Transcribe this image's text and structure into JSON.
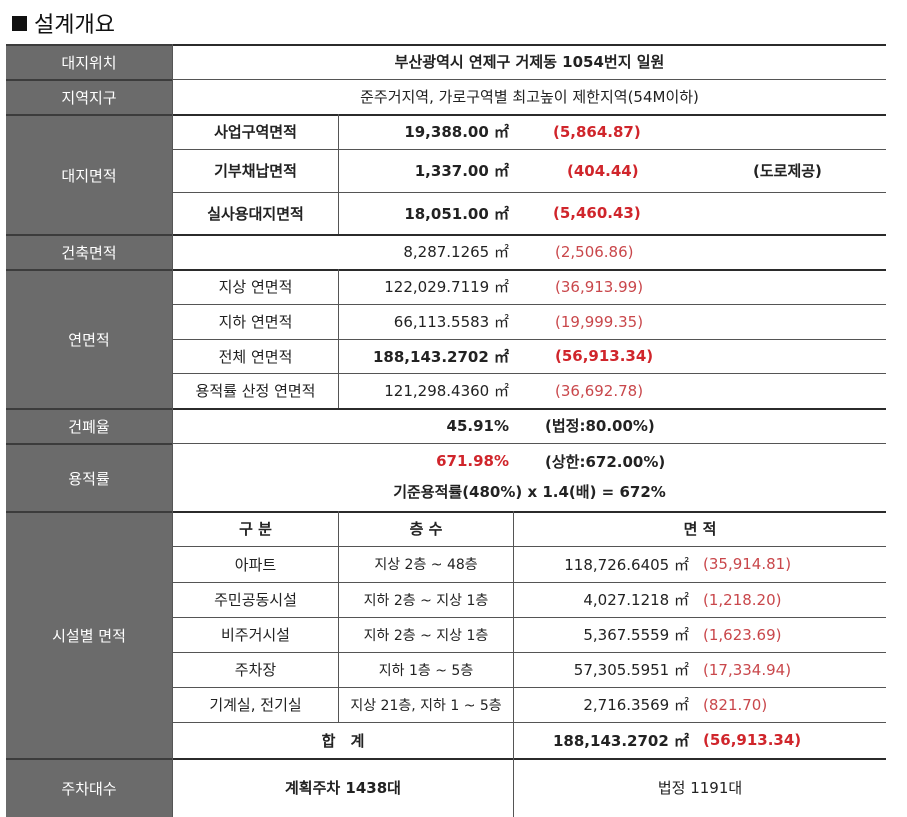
{
  "heading": {
    "title": "설계개요"
  },
  "site_location": {
    "label": "대지위치",
    "value": "부산광역시 연제구 거제동 1054번지 일원"
  },
  "zoning": {
    "label": "지역지구",
    "value": "준주거지역, 가로구역별 최고높이 제한지역(54M이하)"
  },
  "site_area": {
    "label": "대지면적",
    "rows": [
      {
        "name": "사업구역면적",
        "value": "19,388.00 ㎡",
        "pyeong": "(5,864.87)",
        "note": ""
      },
      {
        "name": "기부채납면적",
        "value": "1,337.00 ㎡",
        "pyeong": "(404.44)",
        "note": "(도로제공)"
      },
      {
        "name": "실사용대지면적",
        "value": "18,051.00 ㎡",
        "pyeong": "(5,460.43)",
        "note": ""
      }
    ]
  },
  "building_area": {
    "label": "건축면적",
    "value": "8,287.1265 ㎡",
    "pyeong": "(2,506.86)"
  },
  "floor_area": {
    "label": "연면적",
    "rows": [
      {
        "name": "지상 연면적",
        "value": "122,029.7119 ㎡",
        "pyeong": "(36,913.99)"
      },
      {
        "name": "지하 연면적",
        "value": "66,113.5583 ㎡",
        "pyeong": "(19,999.35)"
      },
      {
        "name": "전체 연면적",
        "value": "188,143.2702 ㎡",
        "pyeong": "(56,913.34)"
      },
      {
        "name": "용적률 산정 연면적",
        "value": "121,298.4360 ㎡",
        "pyeong": "(36,692.78)"
      }
    ]
  },
  "coverage": {
    "label": "건폐율",
    "value": "45.91%",
    "legal": "(법정:80.00%)"
  },
  "far": {
    "label": "용적률",
    "value": "671.98%",
    "limit": "(상한:672.00%)",
    "formula": "기준용적률(480%) x 1.4(배) = 672%"
  },
  "facilities": {
    "label": "시설별 면적",
    "headers": {
      "type": "구 분",
      "floors": "층 수",
      "area": "면 적"
    },
    "rows": [
      {
        "type": "아파트",
        "floors": "지상 2층 ~ 48층",
        "area": "118,726.6405 ㎡",
        "pyeong": "(35,914.81)"
      },
      {
        "type": "주민공동시설",
        "floors": "지하 2층 ~ 지상 1층",
        "area": "4,027.1218 ㎡",
        "pyeong": "(1,218.20)"
      },
      {
        "type": "비주거시설",
        "floors": "지하 2층 ~ 지상 1층",
        "area": "5,367.5559 ㎡",
        "pyeong": "(1,623.69)"
      },
      {
        "type": "주차장",
        "floors": "지하 1층 ~ 5층",
        "area": "57,305.5951 ㎡",
        "pyeong": "(17,334.94)"
      },
      {
        "type": "기계실, 전기실",
        "floors": "지상 21층, 지하 1 ~ 5층",
        "area": "2,716.3569 ㎡",
        "pyeong": "(821.70)"
      }
    ],
    "total": {
      "label": "합 계",
      "area": "188,143.2702 ㎡",
      "pyeong": "(56,913.34)"
    }
  },
  "parking": {
    "label": "주차대수",
    "planned": "계획주차 1438대",
    "legal": "법정 1191대"
  }
}
